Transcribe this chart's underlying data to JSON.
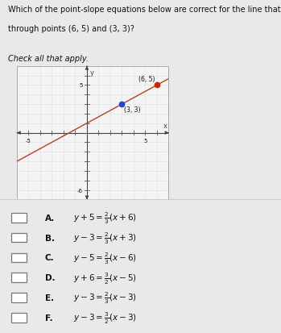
{
  "title_line1": "Which of the point-slope equations below are correct for the line that passes",
  "title_line2": "through points (6, 5) and (3, 3)?",
  "subtitle": "Check all that apply.",
  "graph": {
    "xlim": [
      -6,
      7
    ],
    "ylim": [
      -7,
      7
    ],
    "xtick_labels": [
      -5,
      5
    ],
    "ytick_label": 5,
    "point1": [
      6,
      5
    ],
    "point2": [
      3,
      3
    ],
    "point1_label": "(6, 5)",
    "point2_label": "(3, 3)",
    "point1_color": "#cc2200",
    "point2_color": "#2244cc",
    "line_color": "#b84020",
    "line_width": 1.0
  },
  "options": [
    {
      "letter": "A.",
      "eq": "$y + 5 = \\frac{2}{3}(x + 6)$"
    },
    {
      "letter": "B.",
      "eq": "$y - 3 = \\frac{2}{3}(x + 3)$"
    },
    {
      "letter": "C.",
      "eq": "$y - 5 = \\frac{2}{3}(x - 6)$"
    },
    {
      "letter": "D.",
      "eq": "$y + 6 = \\frac{3}{2}(x - 5)$"
    },
    {
      "letter": "E.",
      "eq": "$y - 3 = \\frac{2}{3}(x - 3)$"
    },
    {
      "letter": "F.",
      "eq": "$y - 3 = \\frac{3}{2}(x - 3)$"
    }
  ],
  "bg_color": "#e9e9e9",
  "graph_bg": "#f4f4f4",
  "text_color": "#111111",
  "separator_color": "#cccccc",
  "graph_border_color": "#aaaaaa",
  "grid_color": "#dddddd",
  "axis_color": "#444444",
  "tick_color": "#555555",
  "checkbox_edge": "#777777"
}
